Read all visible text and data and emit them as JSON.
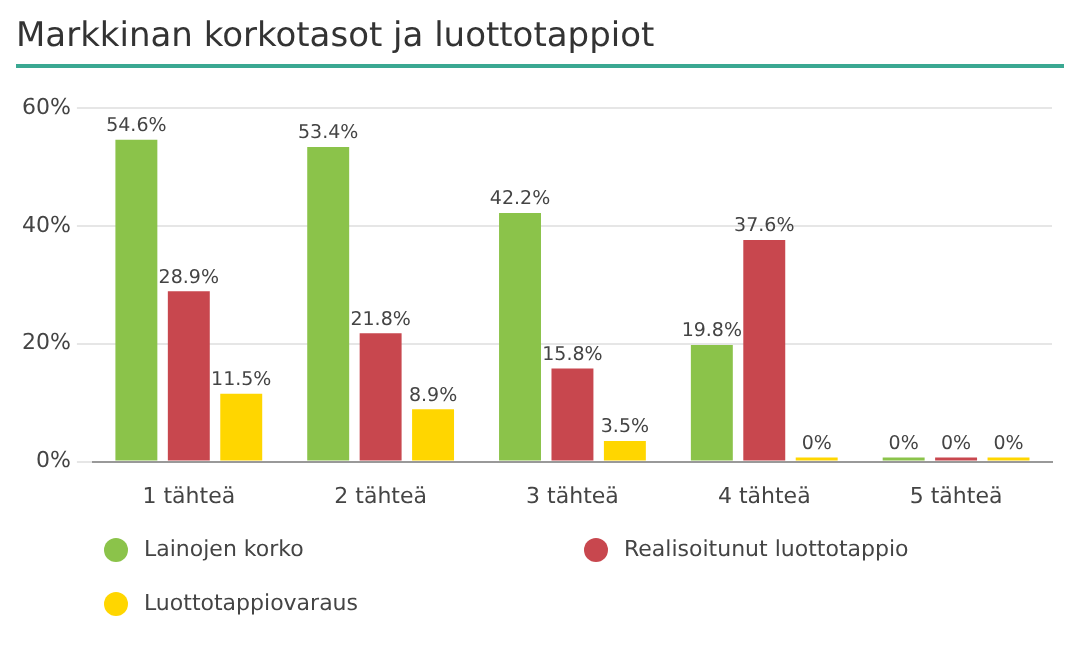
{
  "chart_data": {
    "type": "bar",
    "title": "Markkinan korkotasot ja luottotappiot",
    "categories": [
      "1 tähteä",
      "2 tähteä",
      "3 tähteä",
      "4 tähteä",
      "5 tähteä"
    ],
    "series": [
      {
        "name": "Lainojen korko",
        "color": "#8bc34a",
        "values": [
          54.6,
          53.4,
          42.2,
          19.8,
          0
        ],
        "value_labels": [
          "54.6%",
          "53.4%",
          "42.2%",
          "19.8%",
          "0%"
        ]
      },
      {
        "name": "Realisoitunut luottotappio",
        "color": "#c8474e",
        "values": [
          28.9,
          21.8,
          15.8,
          37.6,
          0
        ],
        "value_labels": [
          "28.9%",
          "21.8%",
          "15.8%",
          "37.6%",
          "0%"
        ]
      },
      {
        "name": "Luottotappiovaraus",
        "color": "#ffd600",
        "values": [
          11.5,
          8.9,
          3.5,
          0,
          0
        ],
        "value_labels": [
          "11.5%",
          "8.9%",
          "3.5%",
          "0%",
          "0%"
        ]
      }
    ],
    "ylim": [
      0,
      60
    ],
    "yticks": [
      {
        "value": 0,
        "label": "0%"
      },
      {
        "value": 20,
        "label": "20%"
      },
      {
        "value": 40,
        "label": "40%"
      },
      {
        "value": 60,
        "label": "60%"
      }
    ],
    "grid": "y",
    "legend": "bottom"
  }
}
